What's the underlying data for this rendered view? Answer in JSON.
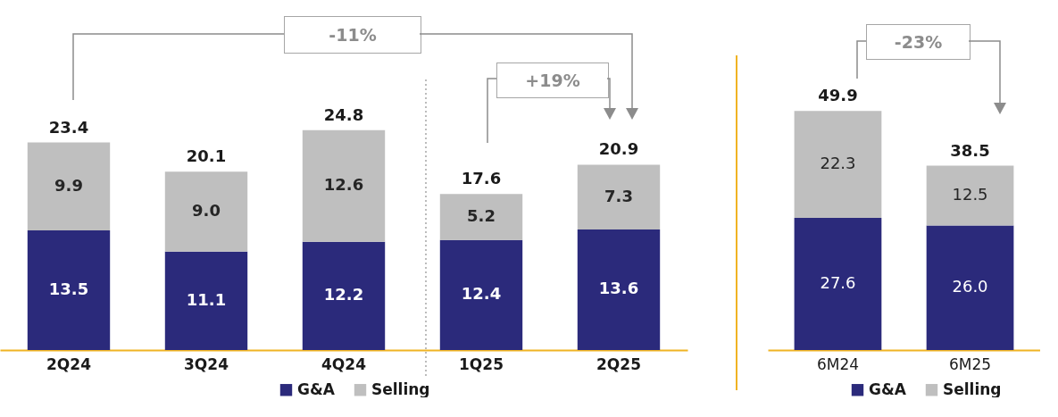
{
  "chart_data": [
    {
      "type": "bar",
      "stacked": true,
      "categories": [
        "2Q24",
        "3Q24",
        "4Q24",
        "1Q25",
        "2Q25"
      ],
      "series": [
        {
          "name": "G&A",
          "color": "#2b2a7b",
          "values": [
            13.5,
            11.1,
            12.2,
            12.4,
            13.6
          ],
          "value_labels": [
            "13.5",
            "11.1",
            "12.2",
            "12.4",
            "13.6"
          ]
        },
        {
          "name": "Selling",
          "color": "#bfbfbf",
          "values": [
            9.9,
            9.0,
            12.6,
            5.2,
            7.3
          ],
          "value_labels": [
            "9.9",
            "9.0",
            "12.6",
            "5.2",
            "7.3"
          ]
        }
      ],
      "totals": [
        "23.4",
        "20.1",
        "24.8",
        "17.6",
        "20.9"
      ],
      "annotations": [
        "-11%",
        "+19%"
      ],
      "legend": "bottom"
    },
    {
      "type": "bar",
      "stacked": true,
      "categories": [
        "6M24",
        "6M25"
      ],
      "series": [
        {
          "name": "G&A",
          "color": "#2b2a7b",
          "values": [
            27.6,
            26.0
          ],
          "value_labels": [
            "27.6",
            "26.0"
          ]
        },
        {
          "name": "Selling",
          "color": "#bfbfbf",
          "values": [
            22.3,
            12.5
          ],
          "value_labels": [
            "22.3",
            "12.5"
          ]
        }
      ],
      "totals": [
        "49.9",
        "38.5"
      ],
      "annotations": [
        "-23%"
      ],
      "legend": "bottom"
    }
  ]
}
